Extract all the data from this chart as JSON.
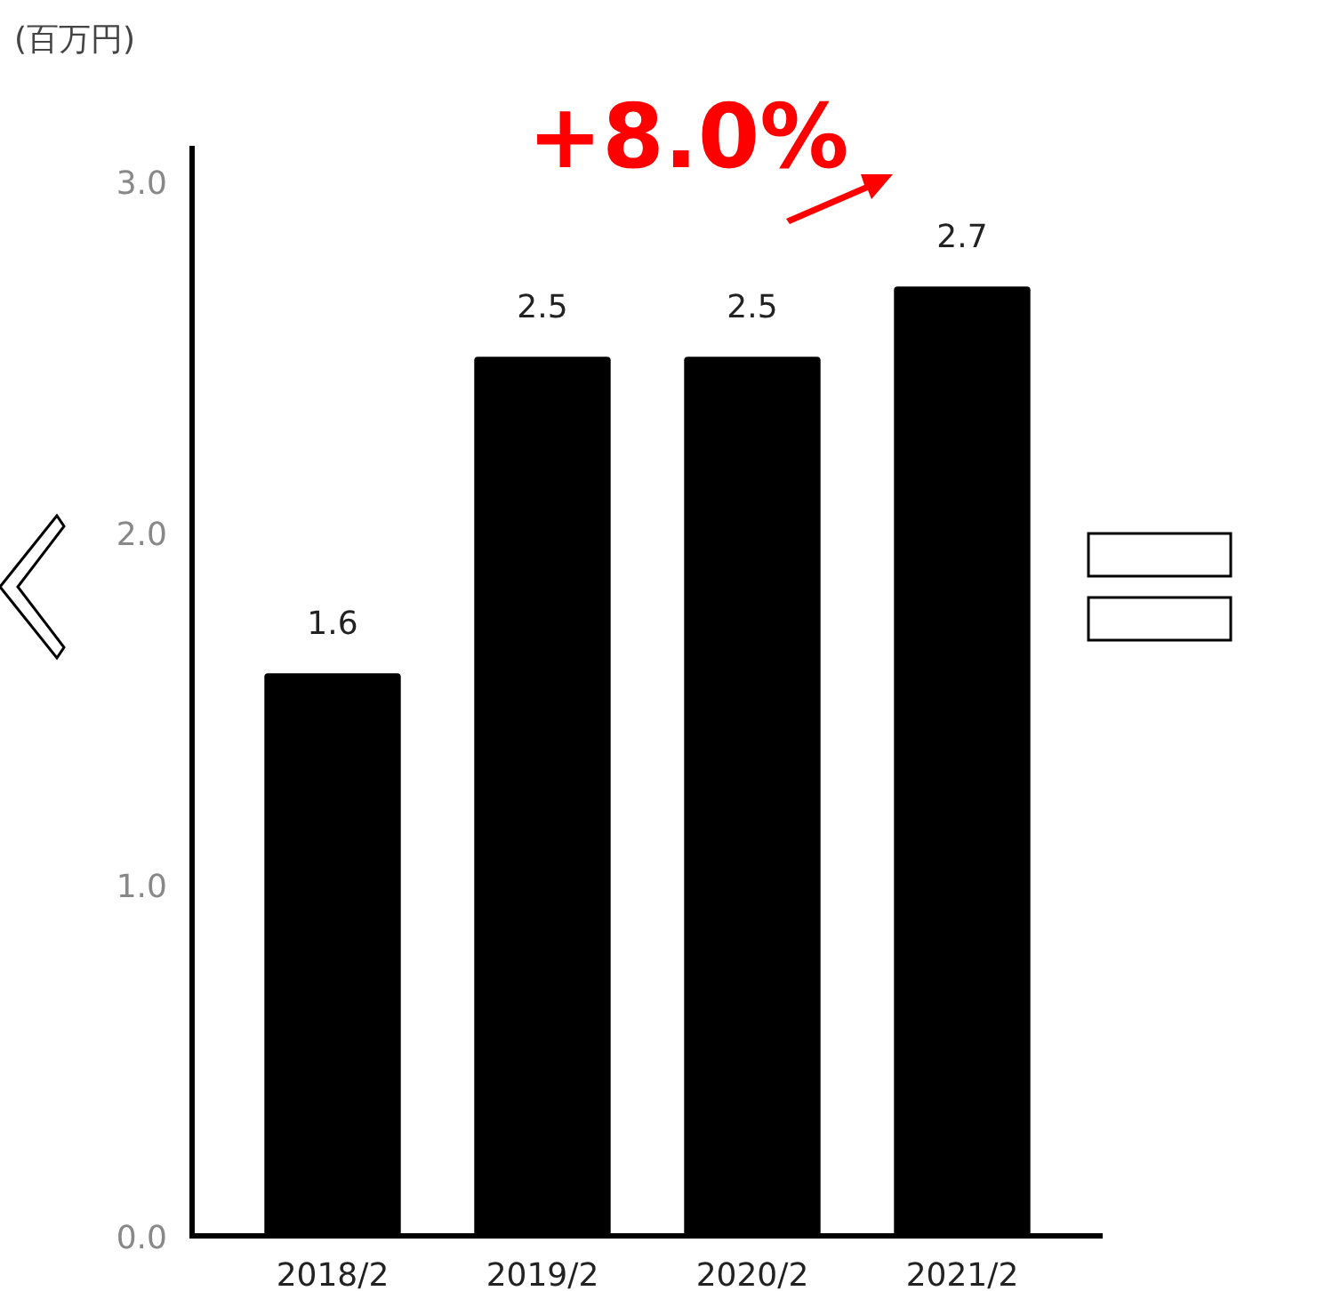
{
  "chart_data": {
    "type": "bar",
    "ylabel": "(百万円)",
    "categories": [
      "2018/2",
      "2019/2",
      "2020/2",
      "2021/2"
    ],
    "values": [
      1.6,
      2.5,
      2.5,
      2.7
    ],
    "color": "#000000",
    "value_labels": [
      "1.6",
      "2.5",
      "2.5",
      "2.7"
    ],
    "ylim": [
      0,
      3.1
    ],
    "yticks": [
      {
        "value": 0,
        "label": "0.0"
      },
      {
        "value": 1,
        "label": "1.0"
      },
      {
        "value": 2,
        "label": "2.0"
      },
      {
        "value": 3,
        "label": "3.0"
      }
    ],
    "annotations": [
      "+8.0%"
    ],
    "grid": false
  }
}
